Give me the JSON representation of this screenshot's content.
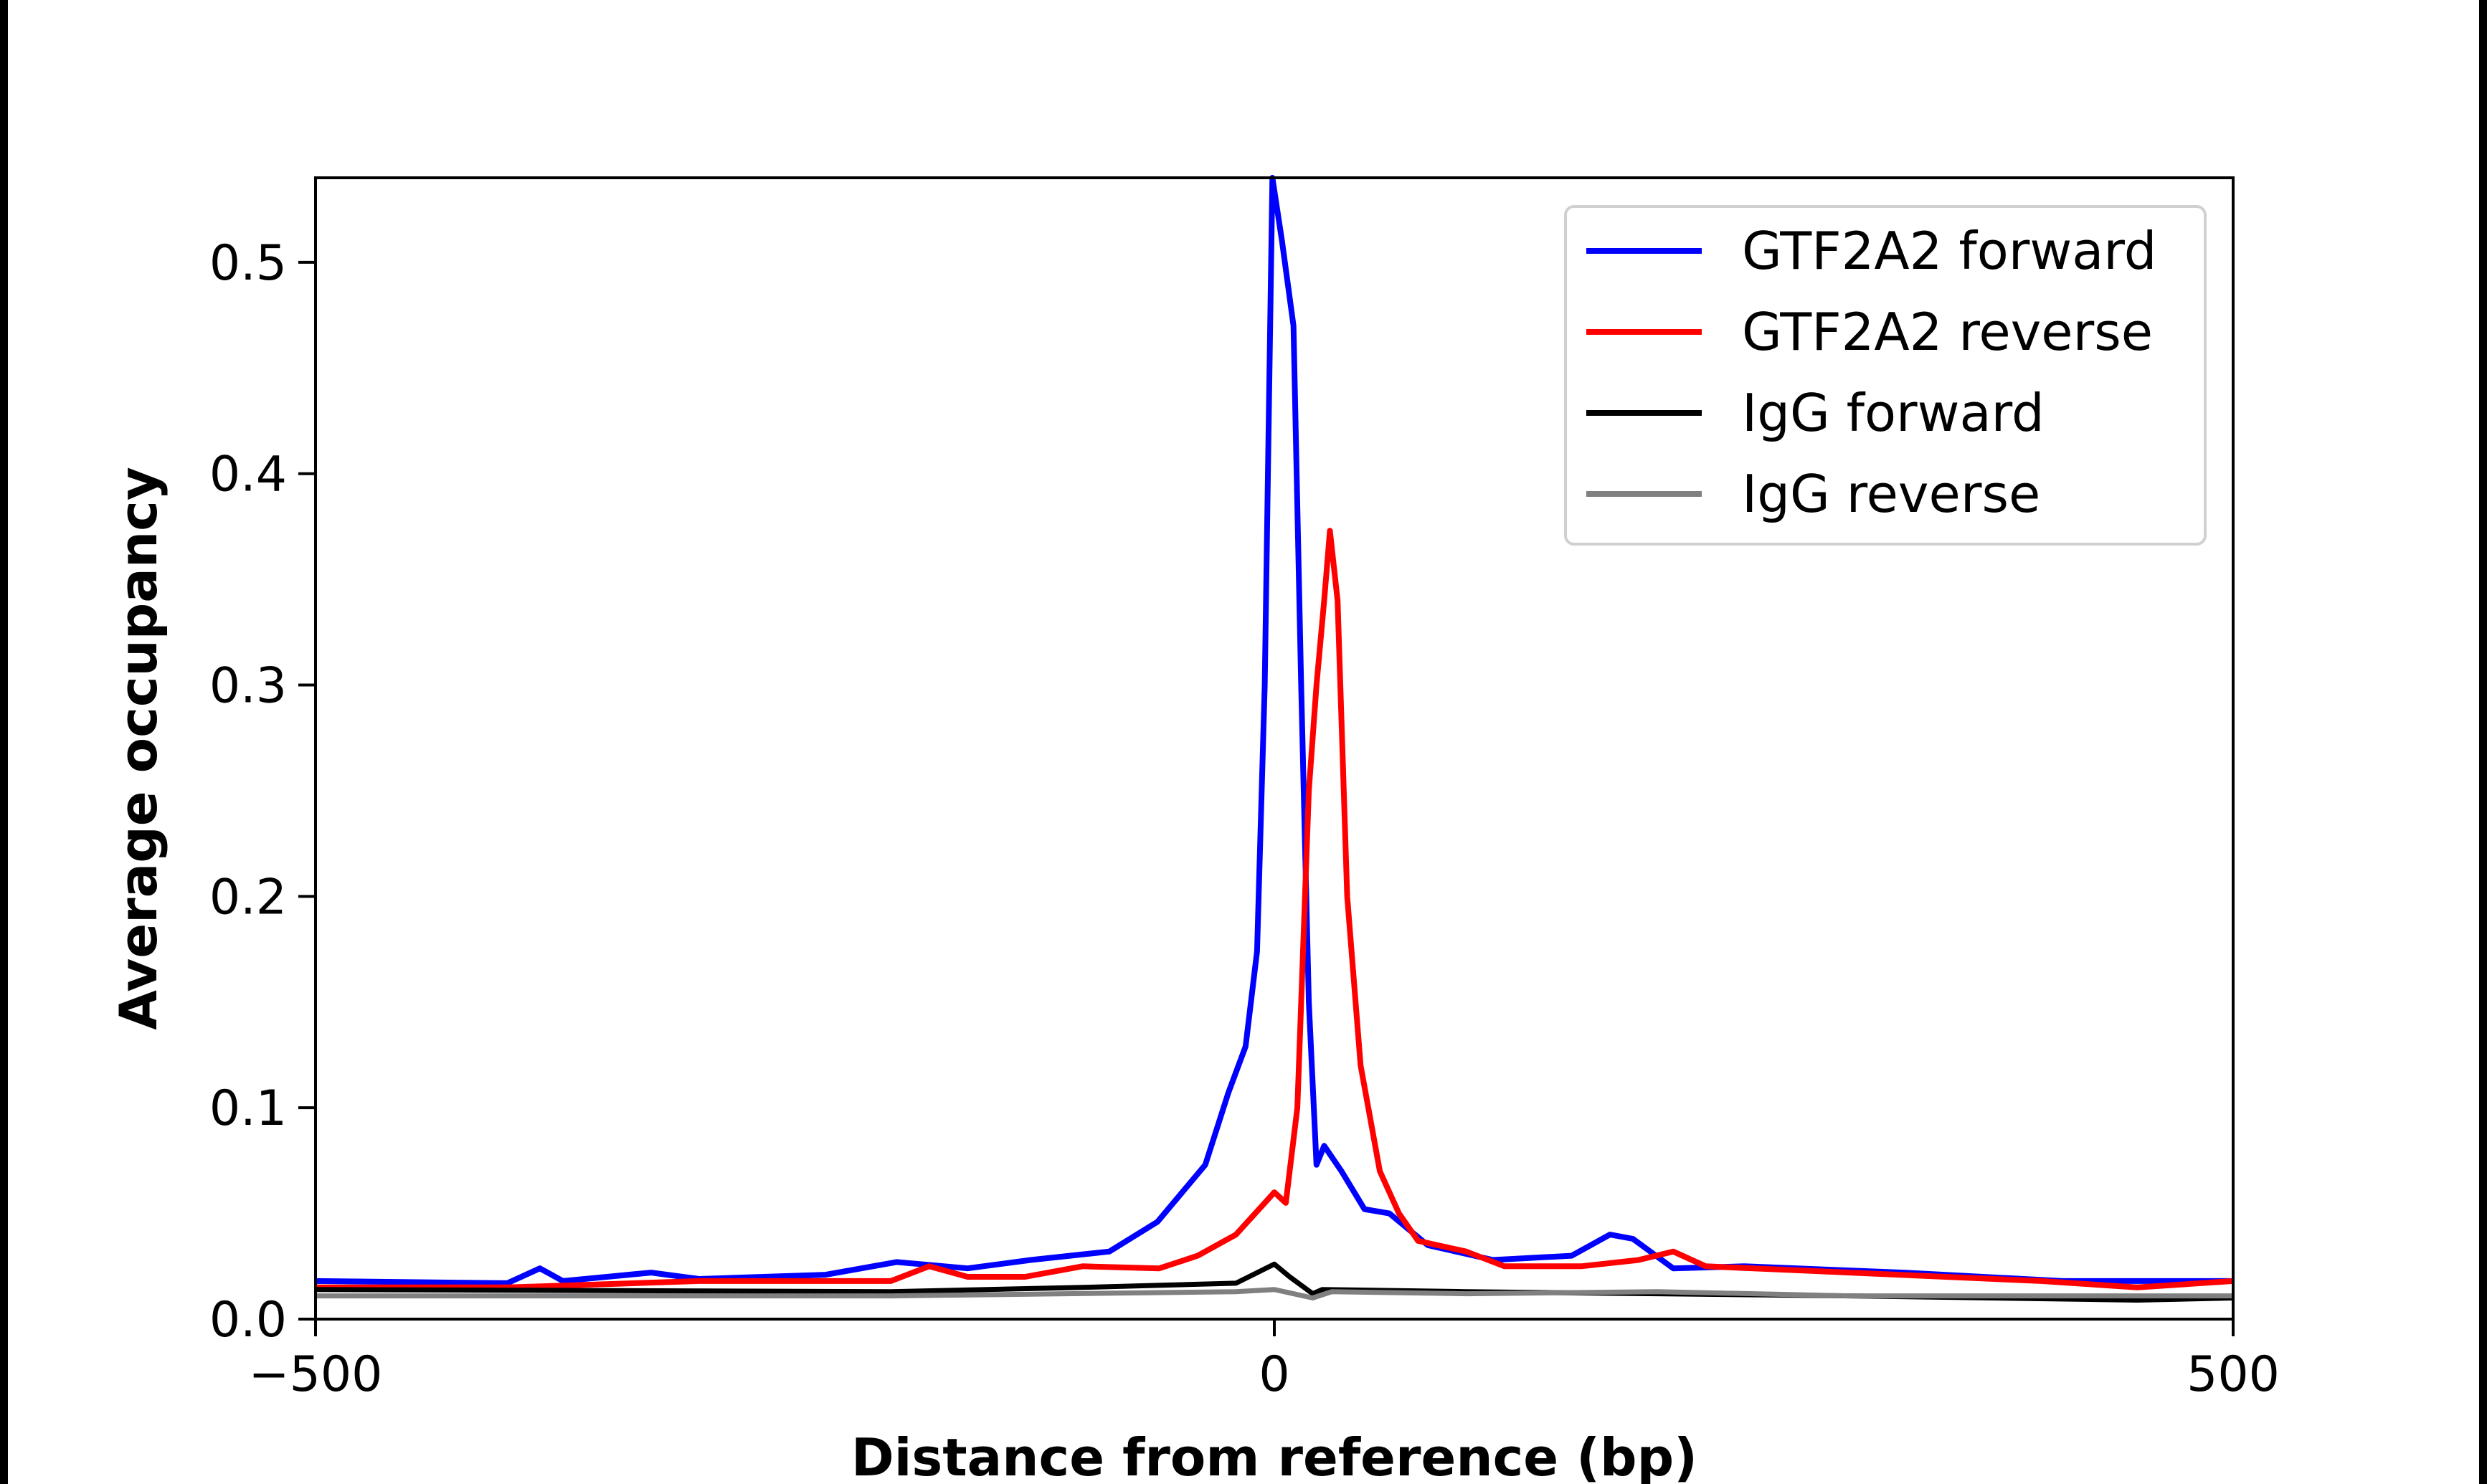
{
  "chart_data": {
    "type": "line",
    "title": "",
    "xlabel": "Distance from reference (bp)",
    "ylabel": "Average occupancy",
    "xlim": [
      -500,
      500
    ],
    "ylim": [
      0,
      0.54
    ],
    "xticks": [
      -500,
      0,
      500
    ],
    "xtick_labels": [
      "−500",
      "0",
      "500"
    ],
    "yticks": [
      0.0,
      0.1,
      0.2,
      0.3,
      0.4,
      0.5
    ],
    "ytick_labels": [
      "0.0",
      "0.1",
      "0.2",
      "0.3",
      "0.4",
      "0.5"
    ],
    "grid": false,
    "legend_position": "top-right",
    "series": [
      {
        "name": "GTF2A2 forward",
        "color": "#0000ff",
        "x": [
          -500,
          -400,
          -383,
          -371,
          -325,
          -300,
          -234,
          -197,
          -160,
          -127,
          -86,
          -61,
          -36,
          -24,
          -15,
          -9,
          -5,
          -1,
          4,
          10,
          14,
          18,
          22,
          26,
          35,
          47,
          60,
          80,
          114,
          155,
          175,
          187,
          208,
          245,
          328,
          411,
          500
        ],
        "y": [
          0.018,
          0.017,
          0.024,
          0.018,
          0.022,
          0.019,
          0.021,
          0.027,
          0.024,
          0.028,
          0.032,
          0.046,
          0.073,
          0.107,
          0.129,
          0.174,
          0.3,
          0.54,
          0.51,
          0.47,
          0.3,
          0.15,
          0.073,
          0.082,
          0.07,
          0.052,
          0.05,
          0.035,
          0.028,
          0.03,
          0.04,
          0.038,
          0.024,
          0.025,
          0.022,
          0.018,
          0.018
        ]
      },
      {
        "name": "GTF2A2 reverse",
        "color": "#ff0000",
        "x": [
          -500,
          -400,
          -300,
          -200,
          -180,
          -160,
          -130,
          -100,
          -60,
          -40,
          -20,
          -5,
          0,
          6,
          12,
          18,
          22,
          26,
          29,
          33,
          38,
          45,
          55,
          65,
          75,
          100,
          120,
          160,
          190,
          208,
          225,
          300,
          400,
          450,
          500
        ],
        "y": [
          0.015,
          0.015,
          0.018,
          0.018,
          0.025,
          0.02,
          0.02,
          0.025,
          0.024,
          0.03,
          0.04,
          0.055,
          0.06,
          0.055,
          0.1,
          0.25,
          0.3,
          0.34,
          0.373,
          0.34,
          0.2,
          0.12,
          0.07,
          0.05,
          0.037,
          0.032,
          0.025,
          0.025,
          0.028,
          0.032,
          0.025,
          0.022,
          0.018,
          0.015,
          0.018
        ]
      },
      {
        "name": "IgG forward",
        "color": "#000000",
        "x": [
          -500,
          -200,
          -100,
          -20,
          0,
          8,
          20,
          25,
          100,
          200,
          300,
          450,
          500
        ],
        "y": [
          0.014,
          0.013,
          0.015,
          0.017,
          0.026,
          0.02,
          0.012,
          0.014,
          0.013,
          0.012,
          0.011,
          0.009,
          0.01
        ]
      },
      {
        "name": "IgG reverse",
        "color": "#808080",
        "x": [
          -500,
          -200,
          -20,
          0,
          10,
          20,
          30,
          100,
          200,
          300,
          400,
          500
        ],
        "y": [
          0.011,
          0.011,
          0.013,
          0.014,
          0.012,
          0.01,
          0.013,
          0.012,
          0.013,
          0.011,
          0.011,
          0.011
        ]
      }
    ]
  }
}
